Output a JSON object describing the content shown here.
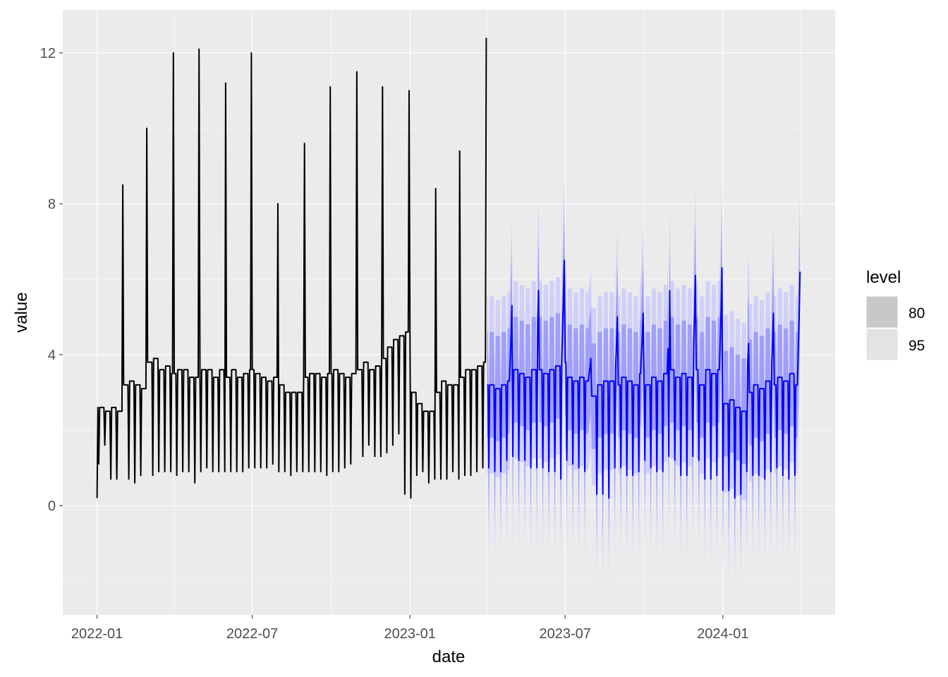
{
  "chart_data": {
    "type": "line",
    "xlabel": "date",
    "ylabel": "value",
    "x_ticks": [
      "2022-01",
      "2022-07",
      "2023-01",
      "2023-07",
      "2024-01"
    ],
    "y_ticks": [
      0,
      4,
      8,
      12
    ],
    "xlim": [
      "2021-11-22",
      "2024-05-11"
    ],
    "ylim": [
      -2.9,
      13.14
    ],
    "grid": true,
    "legend": {
      "title": "level",
      "position": "right",
      "entries": [
        {
          "label": "80",
          "color": "#C8C8C8"
        },
        {
          "label": "95",
          "color": "#E3E3E3"
        }
      ]
    },
    "colors": {
      "history": "#000000",
      "forecast": "#0000FF",
      "band80": "#A0A0FA",
      "band95": "#D0D0FA",
      "panel": "#EBEBEB"
    },
    "history": {
      "start": "2022-01-01",
      "end": "2023-03-31",
      "first_value": 0.2,
      "weeks_base_dip": [
        [
          "2022-01-03",
          2.6,
          1.1
        ],
        [
          "2022-01-10",
          2.5,
          1.6
        ],
        [
          "2022-01-17",
          2.6,
          0.7
        ],
        [
          "2022-01-24",
          2.5,
          0.7
        ],
        [
          "2022-01-31",
          3.2,
          0.6
        ],
        [
          "2022-02-07",
          3.3,
          0.7
        ],
        [
          "2022-02-14",
          3.2,
          0.6
        ],
        [
          "2022-02-21",
          3.1,
          0.8
        ],
        [
          "2022-02-28",
          3.8,
          0.8
        ],
        [
          "2022-03-07",
          3.9,
          0.8
        ],
        [
          "2022-03-14",
          3.6,
          0.9
        ],
        [
          "2022-03-21",
          3.7,
          0.9
        ],
        [
          "2022-03-28",
          3.5,
          0.9
        ],
        [
          "2022-04-04",
          3.6,
          0.8
        ],
        [
          "2022-04-11",
          3.6,
          0.9
        ],
        [
          "2022-04-18",
          3.4,
          0.9
        ],
        [
          "2022-04-25",
          3.4,
          0.6
        ],
        [
          "2022-05-02",
          3.6,
          0.9
        ],
        [
          "2022-05-09",
          3.6,
          1.0
        ],
        [
          "2022-05-16",
          3.4,
          0.9
        ],
        [
          "2022-05-23",
          3.6,
          0.9
        ],
        [
          "2022-05-30",
          3.4,
          0.9
        ],
        [
          "2022-06-06",
          3.6,
          0.9
        ],
        [
          "2022-06-13",
          3.4,
          0.9
        ],
        [
          "2022-06-20",
          3.5,
          0.9
        ],
        [
          "2022-06-27",
          3.6,
          1.0
        ],
        [
          "2022-07-04",
          3.5,
          1.0
        ],
        [
          "2022-07-11",
          3.4,
          1.0
        ],
        [
          "2022-07-18",
          3.3,
          1.0
        ],
        [
          "2022-07-25",
          3.4,
          1.1
        ],
        [
          "2022-08-01",
          3.2,
          0.9
        ],
        [
          "2022-08-08",
          3.0,
          0.9
        ],
        [
          "2022-08-15",
          3.0,
          0.8
        ],
        [
          "2022-08-22",
          3.0,
          0.9
        ],
        [
          "2022-08-29",
          3.4,
          0.9
        ],
        [
          "2022-09-05",
          3.5,
          0.9
        ],
        [
          "2022-09-12",
          3.5,
          0.9
        ],
        [
          "2022-09-19",
          3.4,
          0.9
        ],
        [
          "2022-09-26",
          3.5,
          0.8
        ],
        [
          "2022-10-03",
          3.6,
          0.9
        ],
        [
          "2022-10-10",
          3.5,
          0.9
        ],
        [
          "2022-10-17",
          3.4,
          1.0
        ],
        [
          "2022-10-24",
          3.5,
          1.1
        ],
        [
          "2022-10-31",
          3.6,
          1.2
        ],
        [
          "2022-11-07",
          3.8,
          1.3
        ],
        [
          "2022-11-14",
          3.6,
          1.6
        ],
        [
          "2022-11-21",
          3.7,
          1.3
        ],
        [
          "2022-11-28",
          3.9,
          1.3
        ],
        [
          "2022-12-05",
          4.2,
          1.4
        ],
        [
          "2022-12-12",
          4.4,
          1.6
        ],
        [
          "2022-12-19",
          4.5,
          1.9
        ],
        [
          "2022-12-26",
          4.6,
          0.3
        ],
        [
          "2023-01-02",
          3.0,
          0.2
        ],
        [
          "2023-01-09",
          2.7,
          0.8
        ],
        [
          "2023-01-16",
          2.5,
          0.9
        ],
        [
          "2023-01-23",
          2.5,
          0.6
        ],
        [
          "2023-01-30",
          3.0,
          0.7
        ],
        [
          "2023-02-06",
          3.3,
          0.7
        ],
        [
          "2023-02-13",
          3.2,
          0.7
        ],
        [
          "2023-02-20",
          3.2,
          0.9
        ],
        [
          "2023-02-27",
          3.4,
          0.7
        ],
        [
          "2023-03-06",
          3.6,
          0.8
        ],
        [
          "2023-03-13",
          3.6,
          0.8
        ],
        [
          "2023-03-20",
          3.7,
          0.9
        ],
        [
          "2023-03-27",
          3.8,
          1.0
        ]
      ],
      "spikes": [
        [
          "2022-01-31",
          8.5
        ],
        [
          "2022-02-28",
          10.0
        ],
        [
          "2022-03-31",
          12.0
        ],
        [
          "2022-04-30",
          12.1
        ],
        [
          "2022-05-31",
          11.2
        ],
        [
          "2022-06-30",
          12.0
        ],
        [
          "2022-07-31",
          8.0
        ],
        [
          "2022-08-31",
          9.6
        ],
        [
          "2022-09-30",
          11.1
        ],
        [
          "2022-10-31",
          11.5
        ],
        [
          "2022-11-30",
          11.1
        ],
        [
          "2022-12-31",
          11.0
        ],
        [
          "2023-01-31",
          8.4
        ],
        [
          "2023-02-28",
          9.4
        ],
        [
          "2023-03-31",
          12.4
        ]
      ]
    },
    "forecast": {
      "start": "2023-04-01",
      "end": "2024-03-31",
      "interval_halfwidth": {
        "80": 1.4,
        "95": 2.35
      },
      "weeks_base_dip": [
        [
          "2023-04-03",
          3.2,
          1.0
        ],
        [
          "2023-04-10",
          3.1,
          0.9
        ],
        [
          "2023-04-17",
          3.2,
          0.9
        ],
        [
          "2023-04-24",
          3.3,
          1.2
        ],
        [
          "2023-05-01",
          3.6,
          1.3
        ],
        [
          "2023-05-08",
          3.5,
          1.2
        ],
        [
          "2023-05-15",
          3.4,
          1.2
        ],
        [
          "2023-05-22",
          3.6,
          1.0
        ],
        [
          "2023-05-29",
          3.6,
          1.0
        ],
        [
          "2023-06-05",
          3.5,
          1.0
        ],
        [
          "2023-06-12",
          3.6,
          0.9
        ],
        [
          "2023-06-19",
          3.7,
          0.9
        ],
        [
          "2023-06-26",
          3.8,
          0.7
        ],
        [
          "2023-07-03",
          3.4,
          1.2
        ],
        [
          "2023-07-10",
          3.3,
          1.1
        ],
        [
          "2023-07-17",
          3.4,
          1.0
        ],
        [
          "2023-07-24",
          3.3,
          0.9
        ],
        [
          "2023-07-31",
          2.9,
          0.3
        ],
        [
          "2023-08-07",
          3.2,
          0.3
        ],
        [
          "2023-08-14",
          3.3,
          0.3
        ],
        [
          "2023-08-21",
          3.3,
          0.2
        ],
        [
          "2023-08-28",
          3.2,
          1.0
        ],
        [
          "2023-09-04",
          3.4,
          1.0
        ],
        [
          "2023-09-11",
          3.3,
          0.8
        ],
        [
          "2023-09-18",
          3.2,
          0.8
        ],
        [
          "2023-09-25",
          3.5,
          0.9
        ],
        [
          "2023-10-02",
          3.2,
          1.2
        ],
        [
          "2023-10-09",
          3.4,
          1.0
        ],
        [
          "2023-10-16",
          3.3,
          0.9
        ],
        [
          "2023-10-23",
          3.5,
          0.9
        ],
        [
          "2023-10-30",
          3.6,
          1.3
        ],
        [
          "2023-11-06",
          3.4,
          1.2
        ],
        [
          "2023-11-13",
          3.5,
          0.8
        ],
        [
          "2023-11-20",
          3.4,
          0.8
        ],
        [
          "2023-11-27",
          3.6,
          1.3
        ],
        [
          "2023-12-04",
          3.2,
          1.2
        ],
        [
          "2023-12-11",
          3.6,
          0.7
        ],
        [
          "2023-12-18",
          3.5,
          0.7
        ],
        [
          "2023-12-25",
          3.6,
          0.8
        ],
        [
          "2024-01-01",
          2.7,
          0.4
        ],
        [
          "2024-01-08",
          2.8,
          0.4
        ],
        [
          "2024-01-15",
          2.6,
          0.2
        ],
        [
          "2024-01-22",
          2.5,
          0.3
        ],
        [
          "2024-01-29",
          3.0,
          0.9
        ],
        [
          "2024-02-05",
          3.2,
          0.8
        ],
        [
          "2024-02-12",
          3.1,
          0.8
        ],
        [
          "2024-02-19",
          3.3,
          0.7
        ],
        [
          "2024-02-26",
          3.2,
          0.9
        ],
        [
          "2024-03-04",
          3.4,
          1.0
        ],
        [
          "2024-03-11",
          3.3,
          0.8
        ],
        [
          "2024-03-18",
          3.5,
          0.7
        ],
        [
          "2024-03-25",
          3.2,
          0.8
        ]
      ],
      "spikes": [
        [
          "2023-04-30",
          5.3
        ],
        [
          "2023-05-31",
          5.7
        ],
        [
          "2023-06-30",
          6.5
        ],
        [
          "2023-07-31",
          3.9
        ],
        [
          "2023-08-31",
          5.0
        ],
        [
          "2023-09-30",
          5.1
        ],
        [
          "2023-10-31",
          5.7
        ],
        [
          "2023-11-30",
          6.1
        ],
        [
          "2023-12-31",
          6.3
        ],
        [
          "2024-01-31",
          4.3
        ],
        [
          "2024-02-29",
          5.1
        ],
        [
          "2024-03-31",
          6.2
        ]
      ]
    }
  }
}
